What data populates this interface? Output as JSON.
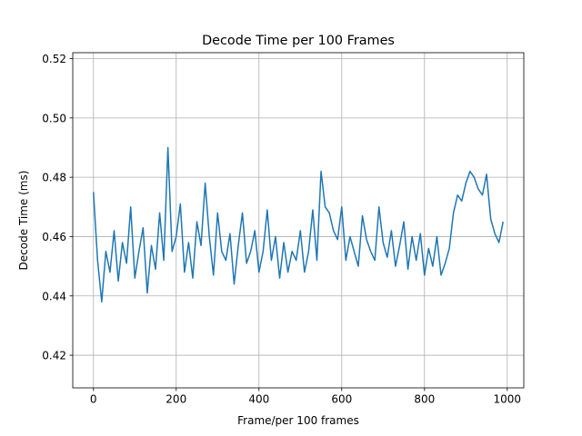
{
  "colors": {
    "series": "#1f77b4",
    "grid": "#b0b0b0",
    "background": "#ffffff"
  },
  "chart_data": {
    "type": "line",
    "title": "Decode Time per 100 Frames",
    "xlabel": "Frame/per 100 frames",
    "ylabel": "Decode Time (ms)",
    "xlim": [
      -50,
      1040
    ],
    "ylim": [
      0.409,
      0.522
    ],
    "xticks": [
      0,
      200,
      400,
      600,
      800,
      1000
    ],
    "yticks": [
      0.42,
      0.44,
      0.46,
      0.48,
      0.5,
      0.52
    ],
    "xtick_labels": [
      "0",
      "200",
      "400",
      "600",
      "800",
      "1000"
    ],
    "ytick_labels": [
      "0.42",
      "0.44",
      "0.46",
      "0.48",
      "0.50",
      "0.52"
    ],
    "grid": true,
    "legend": "none",
    "x": [
      0,
      10,
      20,
      30,
      40,
      50,
      60,
      70,
      80,
      90,
      100,
      110,
      120,
      130,
      140,
      150,
      160,
      170,
      180,
      190,
      200,
      210,
      220,
      230,
      240,
      250,
      260,
      270,
      280,
      290,
      300,
      310,
      320,
      330,
      340,
      350,
      360,
      370,
      380,
      390,
      400,
      410,
      420,
      430,
      440,
      450,
      460,
      470,
      480,
      490,
      500,
      510,
      520,
      530,
      540,
      550,
      560,
      570,
      580,
      590,
      600,
      610,
      620,
      630,
      640,
      650,
      660,
      670,
      680,
      690,
      700,
      710,
      720,
      730,
      740,
      750,
      760,
      770,
      780,
      790,
      800,
      810,
      820,
      830,
      840,
      850,
      860,
      870,
      880,
      890,
      900,
      910,
      920,
      930,
      940,
      950,
      960,
      970,
      980,
      990
    ],
    "series": [
      {
        "values": [
          0.475,
          0.452,
          0.438,
          0.455,
          0.448,
          0.462,
          0.445,
          0.458,
          0.451,
          0.47,
          0.446,
          0.455,
          0.463,
          0.441,
          0.457,
          0.449,
          0.468,
          0.452,
          0.49,
          0.455,
          0.46,
          0.471,
          0.448,
          0.458,
          0.446,
          0.465,
          0.457,
          0.478,
          0.46,
          0.447,
          0.468,
          0.455,
          0.452,
          0.461,
          0.444,
          0.457,
          0.468,
          0.451,
          0.455,
          0.462,
          0.448,
          0.455,
          0.469,
          0.452,
          0.46,
          0.446,
          0.458,
          0.448,
          0.455,
          0.452,
          0.462,
          0.448,
          0.455,
          0.469,
          0.452,
          0.482,
          0.47,
          0.468,
          0.462,
          0.459,
          0.47,
          0.452,
          0.46,
          0.455,
          0.45,
          0.467,
          0.459,
          0.455,
          0.452,
          0.47,
          0.458,
          0.453,
          0.462,
          0.45,
          0.457,
          0.465,
          0.449,
          0.46,
          0.452,
          0.461,
          0.447,
          0.456,
          0.45,
          0.46,
          0.447,
          0.451,
          0.456,
          0.468,
          0.474,
          0.472,
          0.478,
          0.482,
          0.48,
          0.476,
          0.474,
          0.481,
          0.466,
          0.461,
          0.458,
          0.465
        ]
      }
    ]
  }
}
